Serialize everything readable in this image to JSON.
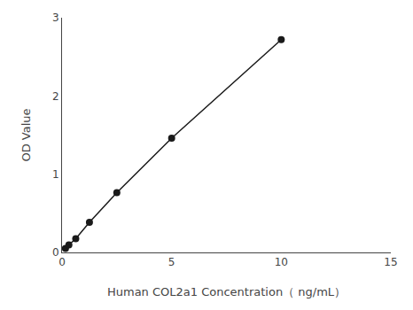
{
  "chart_data": {
    "type": "line",
    "x": [
      0.156,
      0.312,
      0.625,
      1.25,
      2.5,
      5.0,
      10.0
    ],
    "values": [
      0.052,
      0.097,
      0.175,
      0.385,
      0.765,
      1.46,
      2.72
    ],
    "xlabel": "Human COL2a1 Concentration（ ng/mL）",
    "ylabel": "OD Value",
    "xlim": [
      0,
      15
    ],
    "ylim": [
      0,
      3
    ],
    "xticks": [
      0,
      5,
      10,
      15
    ],
    "yticks": [
      0,
      1,
      2,
      3
    ],
    "color": "#1a1a1a",
    "marker": "circle",
    "grid": false
  }
}
